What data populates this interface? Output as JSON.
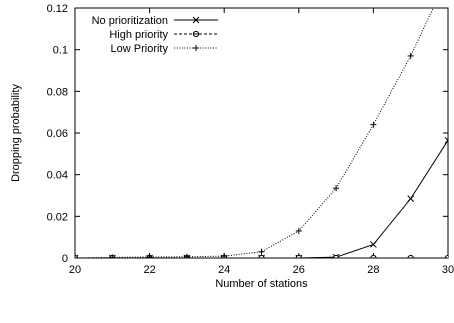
{
  "chart_data": {
    "type": "line",
    "title": "",
    "xlabel": "Number of stations",
    "ylabel": "Dropping probability",
    "xlim": [
      20,
      30
    ],
    "ylim": [
      0,
      0.12
    ],
    "xticks": [
      20,
      22,
      24,
      26,
      28,
      30
    ],
    "yticks": [
      0,
      0.02,
      0.04,
      0.06,
      0.08,
      0.1,
      0.12
    ],
    "xtick_labels": [
      "20",
      "22",
      "24",
      "26",
      "28",
      "30"
    ],
    "ytick_labels": [
      "0",
      "0.02",
      "0.04",
      "0.06",
      "0.08",
      "0.1",
      "0.12"
    ],
    "grid": false,
    "legend_position": "top-left",
    "series": [
      {
        "name": "No prioritization",
        "line_style": "solid",
        "marker": "x",
        "x": [
          20,
          21,
          22,
          23,
          24,
          25,
          26,
          27,
          28,
          29,
          30
        ],
        "y": [
          0,
          0,
          0,
          0,
          0,
          0,
          0,
          0.0004,
          0.0065,
          0.0285,
          0.0565
        ]
      },
      {
        "name": "High priority",
        "line_style": "dashed",
        "marker": "circle",
        "x": [
          20,
          21,
          22,
          23,
          24,
          25,
          26,
          27,
          28,
          29,
          30
        ],
        "y": [
          0,
          0,
          0,
          0,
          0,
          0,
          0,
          0,
          0,
          0,
          0
        ]
      },
      {
        "name": "Low Priority",
        "line_style": "dotted",
        "marker": "plus",
        "x": [
          20,
          21,
          22,
          23,
          24,
          25,
          26,
          27,
          28,
          29,
          30
        ],
        "y": [
          0,
          0.0003,
          0.0005,
          0.0006,
          0.0009,
          0.003,
          0.013,
          0.0335,
          0.064,
          0.097,
          0.135
        ]
      }
    ]
  }
}
